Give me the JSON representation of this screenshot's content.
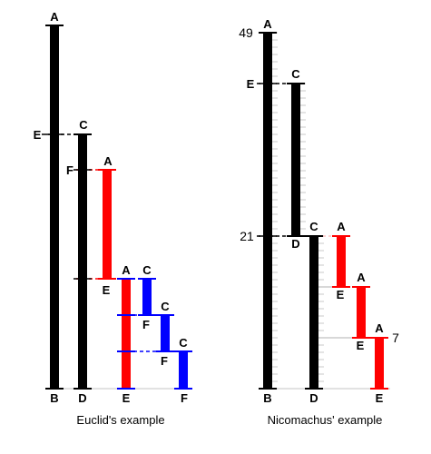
{
  "colors": {
    "black": "#000000",
    "red": "#ff0000",
    "blue": "#0000ff",
    "faint": "#d9d9d9"
  },
  "euclid": {
    "caption": "Euclid's example",
    "labels": {
      "A_top": "A",
      "B_bottom": "B",
      "C_top": "C",
      "D_bottom": "D",
      "E_left": "E",
      "A_red1": "A",
      "F_left": "F",
      "A_red2": "A",
      "E_red2": "E",
      "E_bottom": "E",
      "C_blue1": "C",
      "F_blue1": "F",
      "C_blue2": "C",
      "F_blue2": "F",
      "C_blue3": "C",
      "F_bottom": "F"
    }
  },
  "nicomachus": {
    "caption": "Nicomachus' example",
    "values": {
      "top": "49",
      "middle": "21",
      "unit": "7"
    },
    "labels": {
      "A_top": "A",
      "B_bottom": "B",
      "E_left": "E",
      "C_black2": "C",
      "D_black2": "D",
      "C_black3": "C",
      "D_bottom": "D",
      "A_red1": "A",
      "E_red1": "E",
      "A_red2": "A",
      "E_red2": "E",
      "A_red3": "A",
      "E_bottom": "E"
    }
  }
}
